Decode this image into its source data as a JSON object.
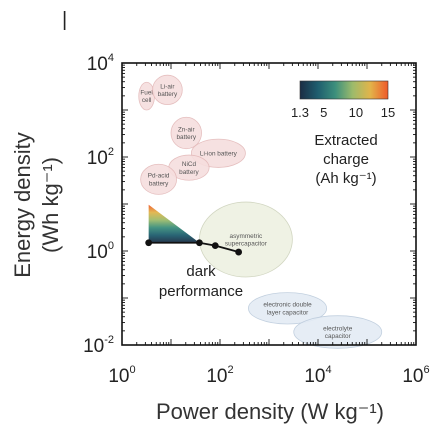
{
  "chart_data": {
    "type": "scatter",
    "x_scale": "log",
    "y_scale": "log",
    "xlim": [
      1,
      1000000
    ],
    "ylim": [
      0.01,
      10000
    ],
    "xlabel": "Power density (W kg⁻¹)",
    "ylabel": "Energy density (Wh kg⁻¹)",
    "x_ticks": [
      {
        "value": 1,
        "base": "10",
        "exp": "0"
      },
      {
        "value": 100,
        "base": "10",
        "exp": "2"
      },
      {
        "value": 10000,
        "base": "10",
        "exp": "4"
      },
      {
        "value": 1000000,
        "base": "10",
        "exp": "6"
      }
    ],
    "y_ticks": [
      {
        "value": 0.01,
        "base": "10",
        "exp": "-2"
      },
      {
        "value": 1,
        "base": "10",
        "exp": "0"
      },
      {
        "value": 100,
        "base": "10",
        "exp": "2"
      },
      {
        "value": 10000,
        "base": "10",
        "exp": "4"
      }
    ],
    "regions": [
      {
        "label": "Fuel cell",
        "lines": [
          "Fuel",
          "cell"
        ],
        "x_range": [
          2.2,
          4.6
        ],
        "y_range": [
          1000,
          3900
        ],
        "color": "#f6dede"
      },
      {
        "label": "Li-air battery",
        "lines": [
          "Li-air",
          "battery"
        ],
        "x_range": [
          4.2,
          17
        ],
        "y_range": [
          1300,
          5500
        ],
        "color": "#f6dede"
      },
      {
        "label": "Zn-air battery",
        "lines": [
          "Zn-air",
          "battery"
        ],
        "x_range": [
          10,
          42
        ],
        "y_range": [
          150,
          700
        ],
        "color": "#f6dede"
      },
      {
        "label": "Li-ion battery",
        "lines": [
          "Li-ion battery"
        ],
        "x_range": [
          26,
          330
        ],
        "y_range": [
          60,
          240
        ],
        "color": "#f6dede"
      },
      {
        "label": "NiCd battery",
        "lines": [
          "NiCd",
          "battery"
        ],
        "x_range": [
          9,
          60
        ],
        "y_range": [
          32,
          110
        ],
        "color": "#f6dede"
      },
      {
        "label": "Pd-acid battery",
        "lines": [
          "Pd-acid",
          "battery"
        ],
        "x_range": [
          2.4,
          13
        ],
        "y_range": [
          16,
          70
        ],
        "color": "#f6dede"
      },
      {
        "label": "asymmetric supercapacitor",
        "lines": [
          "asymmetric",
          "supercapacitor"
        ],
        "x_range": [
          38,
          3000
        ],
        "y_range": [
          0.28,
          11
        ],
        "color": "#eef1e2"
      },
      {
        "label": "electronic double layer capacitor",
        "lines": [
          "electronic double",
          "layer capacitor"
        ],
        "x_range": [
          380,
          15000
        ],
        "y_range": [
          0.028,
          0.13
        ],
        "color": "#e4ecf5"
      },
      {
        "label": "electrolyte capacitor",
        "lines": [
          "electrolyte",
          "capacitor"
        ],
        "x_range": [
          3200,
          200000
        ],
        "y_range": [
          0.0085,
          0.042
        ],
        "color": "#e4ecf5"
      }
    ],
    "series": [
      {
        "name": "dark performance",
        "lines": [
          "dark",
          "performance"
        ],
        "color": "#111111",
        "x": [
          3.5,
          38,
          80,
          240
        ],
        "y": [
          1.5,
          1.5,
          1.3,
          0.95
        ]
      }
    ],
    "colorbar": {
      "label_lines": [
        "Extracted",
        "charge",
        "(Ah kg⁻¹)"
      ],
      "tick_labels": [
        "1.3",
        "5",
        "10",
        "15"
      ],
      "tick_values": [
        1.3,
        5,
        10,
        15
      ],
      "range": [
        1.3,
        15
      ],
      "colors": [
        "#1b2d44",
        "#1e5d6e",
        "#3c8f7c",
        "#9dbb6b",
        "#e2b44a",
        "#ef5a2a"
      ]
    }
  },
  "page_mark": "|"
}
